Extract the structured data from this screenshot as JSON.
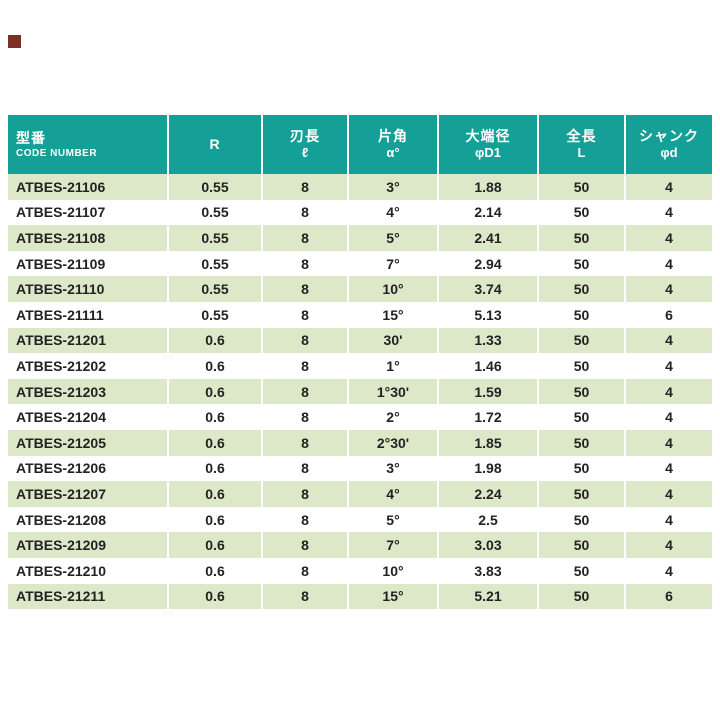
{
  "page": {
    "background": "#ffffff"
  },
  "corner_marker": {
    "color": "#7d2f26"
  },
  "table": {
    "header_bg": "#14a096",
    "header_text_color": "#ffffff",
    "row_alt_bg": "#dde8c9",
    "row_bg": "#ffffff",
    "columns": [
      {
        "title": "型番",
        "subtitle": "CODE NUMBER"
      },
      {
        "title": "R",
        "subtitle": ""
      },
      {
        "title": "刃長",
        "subtitle": "ℓ"
      },
      {
        "title": "片角",
        "subtitle": "α°"
      },
      {
        "title": "大端径",
        "subtitle": "φD1"
      },
      {
        "title": "全長",
        "subtitle": "L"
      },
      {
        "title": "シャンク",
        "subtitle": "φd"
      }
    ],
    "rows": [
      [
        "ATBES-21106",
        "0.55",
        "8",
        "3°",
        "1.88",
        "50",
        "4"
      ],
      [
        "ATBES-21107",
        "0.55",
        "8",
        "4°",
        "2.14",
        "50",
        "4"
      ],
      [
        "ATBES-21108",
        "0.55",
        "8",
        "5°",
        "2.41",
        "50",
        "4"
      ],
      [
        "ATBES-21109",
        "0.55",
        "8",
        "7°",
        "2.94",
        "50",
        "4"
      ],
      [
        "ATBES-21110",
        "0.55",
        "8",
        "10°",
        "3.74",
        "50",
        "4"
      ],
      [
        "ATBES-21111",
        "0.55",
        "8",
        "15°",
        "5.13",
        "50",
        "6"
      ],
      [
        "ATBES-21201",
        "0.6",
        "8",
        "30'",
        "1.33",
        "50",
        "4"
      ],
      [
        "ATBES-21202",
        "0.6",
        "8",
        "1°",
        "1.46",
        "50",
        "4"
      ],
      [
        "ATBES-21203",
        "0.6",
        "8",
        "1°30'",
        "1.59",
        "50",
        "4"
      ],
      [
        "ATBES-21204",
        "0.6",
        "8",
        "2°",
        "1.72",
        "50",
        "4"
      ],
      [
        "ATBES-21205",
        "0.6",
        "8",
        "2°30'",
        "1.85",
        "50",
        "4"
      ],
      [
        "ATBES-21206",
        "0.6",
        "8",
        "3°",
        "1.98",
        "50",
        "4"
      ],
      [
        "ATBES-21207",
        "0.6",
        "8",
        "4°",
        "2.24",
        "50",
        "4"
      ],
      [
        "ATBES-21208",
        "0.6",
        "8",
        "5°",
        "2.5",
        "50",
        "4"
      ],
      [
        "ATBES-21209",
        "0.6",
        "8",
        "7°",
        "3.03",
        "50",
        "4"
      ],
      [
        "ATBES-21210",
        "0.6",
        "8",
        "10°",
        "3.83",
        "50",
        "4"
      ],
      [
        "ATBES-21211",
        "0.6",
        "8",
        "15°",
        "5.21",
        "50",
        "6"
      ]
    ]
  }
}
